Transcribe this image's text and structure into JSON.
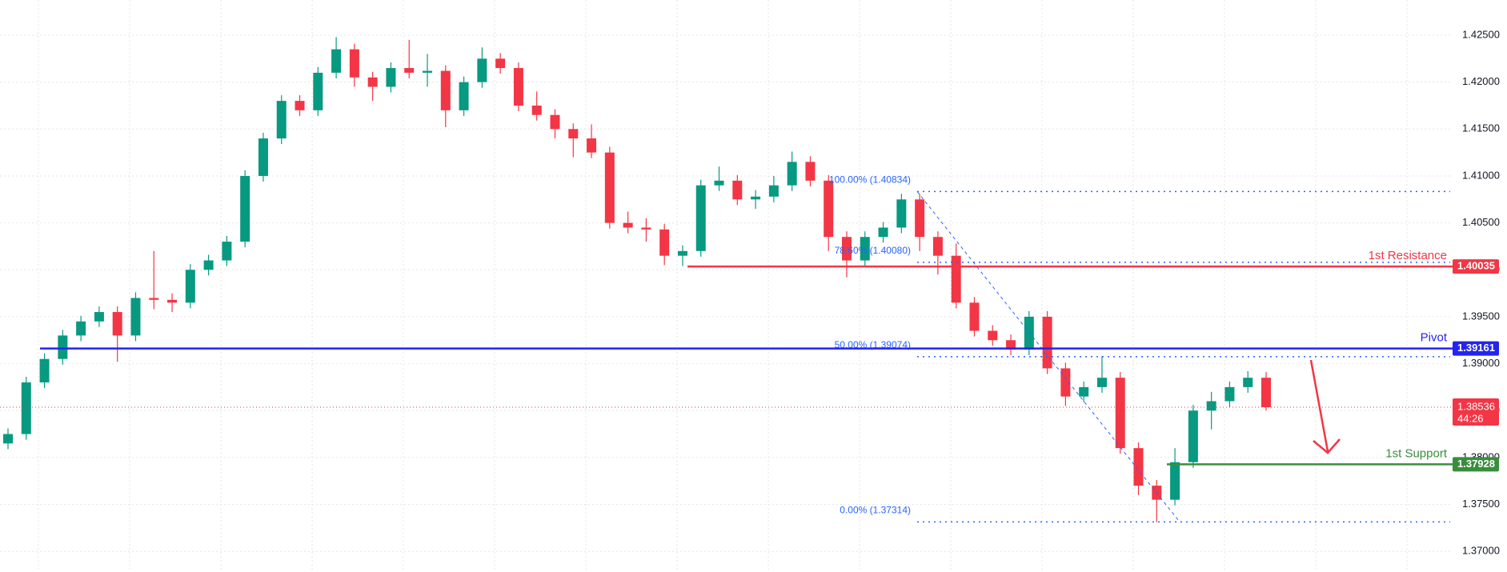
{
  "chart_data": {
    "type": "candlestick",
    "up_color": "#089981",
    "down_color": "#f23645",
    "open": [
      1.3815,
      1.3825,
      1.388,
      1.3905,
      1.393,
      1.3945,
      1.3955,
      1.393,
      1.397,
      1.3968,
      1.3965,
      1.4,
      1.401,
      1.403,
      1.41,
      1.414,
      1.418,
      1.417,
      1.421,
      1.4235,
      1.4205,
      1.4195,
      1.4215,
      1.421,
      1.4212,
      1.417,
      1.42,
      1.4225,
      1.4215,
      1.4175,
      1.4165,
      1.415,
      1.414,
      1.4125,
      1.405,
      1.4045,
      1.4043,
      1.4015,
      1.402,
      1.409,
      1.4095,
      1.4075,
      1.4078,
      1.409,
      1.4115,
      1.4095,
      1.4035,
      1.401,
      1.4035,
      1.4045,
      1.4075,
      1.4035,
      1.4015,
      1.3965,
      1.3935,
      1.3925,
      1.3915,
      1.395,
      1.3895,
      1.3865,
      1.3875,
      1.3885,
      1.381,
      1.377,
      1.3755,
      1.3795,
      1.385,
      1.386,
      1.3875,
      1.3885
    ],
    "high": [
      1.3831,
      1.3886,
      1.3911,
      1.3936,
      1.3951,
      1.3961,
      1.3961,
      1.3976,
      1.402,
      1.3975,
      1.4006,
      1.4016,
      1.4036,
      1.4106,
      1.4146,
      1.4186,
      1.4186,
      1.4216,
      1.4248,
      1.4241,
      1.4211,
      1.4221,
      1.4245,
      1.423,
      1.4218,
      1.4206,
      1.4237,
      1.4231,
      1.4221,
      1.419,
      1.4171,
      1.4156,
      1.4155,
      1.4131,
      1.4062,
      1.4055,
      1.4049,
      1.4026,
      1.4096,
      1.411,
      1.4101,
      1.4085,
      1.41,
      1.4126,
      1.4121,
      1.4101,
      1.4041,
      1.4041,
      1.4051,
      1.4081,
      1.4081,
      1.4041,
      1.4028,
      1.3971,
      1.3941,
      1.3931,
      1.3956,
      1.3956,
      1.3901,
      1.3881,
      1.3908,
      1.3891,
      1.3816,
      1.3776,
      1.381,
      1.3856,
      1.387,
      1.3881,
      1.3892,
      1.3891
    ],
    "low": [
      1.3809,
      1.3819,
      1.3874,
      1.3899,
      1.3924,
      1.3939,
      1.3902,
      1.3924,
      1.3958,
      1.3955,
      1.3959,
      1.3994,
      1.4004,
      1.4024,
      1.4094,
      1.4134,
      1.4164,
      1.4164,
      1.4204,
      1.4195,
      1.418,
      1.4189,
      1.4204,
      1.4195,
      1.4152,
      1.4164,
      1.4194,
      1.4209,
      1.4169,
      1.4159,
      1.414,
      1.412,
      1.4119,
      1.4044,
      1.4039,
      1.403,
      1.4005,
      1.4004,
      1.4014,
      1.4084,
      1.4069,
      1.4065,
      1.4072,
      1.4084,
      1.4089,
      1.402,
      1.3992,
      1.4004,
      1.4029,
      1.4039,
      1.402,
      1.3995,
      1.3959,
      1.3929,
      1.3919,
      1.3909,
      1.3909,
      1.3889,
      1.3855,
      1.3859,
      1.3869,
      1.3804,
      1.376,
      1.3731,
      1.3749,
      1.3789,
      1.383,
      1.3854,
      1.3869,
      1.385
    ],
    "close": [
      1.3825,
      1.388,
      1.3905,
      1.393,
      1.3945,
      1.3955,
      1.393,
      1.397,
      1.3968,
      1.3965,
      1.4,
      1.401,
      1.403,
      1.41,
      1.414,
      1.418,
      1.417,
      1.421,
      1.4235,
      1.4205,
      1.4195,
      1.4215,
      1.421,
      1.4212,
      1.417,
      1.42,
      1.4225,
      1.4215,
      1.4175,
      1.4165,
      1.415,
      1.414,
      1.4125,
      1.405,
      1.4045,
      1.4043,
      1.4015,
      1.402,
      1.409,
      1.4095,
      1.4075,
      1.4078,
      1.409,
      1.4115,
      1.4095,
      1.4035,
      1.401,
      1.4035,
      1.4045,
      1.4075,
      1.4035,
      1.4015,
      1.3965,
      1.3935,
      1.3925,
      1.3915,
      1.395,
      1.3895,
      1.3865,
      1.3875,
      1.3885,
      1.381,
      1.377,
      1.3755,
      1.3795,
      1.385,
      1.386,
      1.3875,
      1.3885,
      1.38536
    ],
    "ylim": [
      1.3678,
      1.42875
    ],
    "yticks": [
      {
        "value": 1.37,
        "label": "1.37000"
      },
      {
        "value": 1.375,
        "label": "1.37500"
      },
      {
        "value": 1.38,
        "label": "1.38000"
      },
      {
        "value": 1.385,
        "label": "1.38500"
      },
      {
        "value": 1.39,
        "label": "1.39000"
      },
      {
        "value": 1.395,
        "label": "1.39500"
      },
      {
        "value": 1.4,
        "label": "1.40000"
      },
      {
        "value": 1.405,
        "label": "1.40500"
      },
      {
        "value": 1.41,
        "label": "1.41000"
      },
      {
        "value": 1.415,
        "label": "1.41500"
      },
      {
        "value": 1.42,
        "label": "1.42000"
      },
      {
        "value": 1.425,
        "label": "1.42500"
      }
    ],
    "grid": true,
    "levels": [
      {
        "name": "1st Resistance",
        "value": 1.40035,
        "color": "#f23645"
      },
      {
        "name": "Pivot",
        "value": 1.39161,
        "color": "#2424f0"
      },
      {
        "name": "1st Support",
        "value": 1.37928,
        "color": "#388e3c"
      }
    ],
    "current_price": {
      "value": 1.38536,
      "countdown": "44:26",
      "color": "#f23645"
    },
    "fib_color": "#2962ff",
    "fib_levels": [
      {
        "value": 1.40834,
        "label": "100.00% (1.40834)"
      },
      {
        "value": 1.4008,
        "label": "78.60% (1.40080)"
      },
      {
        "value": 1.39074,
        "label": "50.00% (1.39074)"
      },
      {
        "value": 1.37314,
        "label": "0.00% (1.37314)"
      }
    ]
  }
}
